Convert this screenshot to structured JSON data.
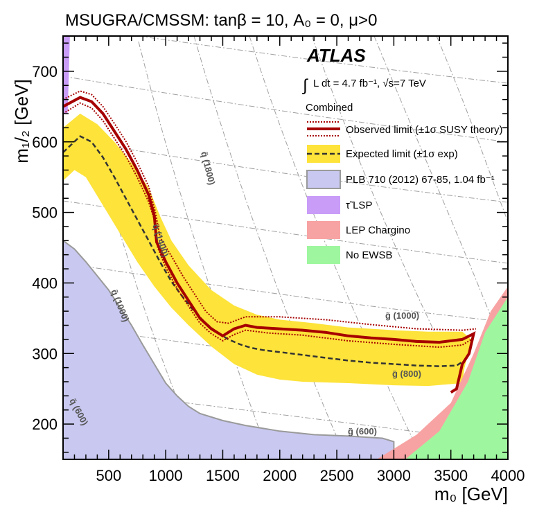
{
  "chart_data": {
    "type": "line",
    "title": "MSUGRA/CMSSM: tanβ = 10, A₀ = 0, μ>0",
    "xlabel": "m₀ [GeV]",
    "ylabel": "m₁/₂ [GeV]",
    "xlim": [
      100,
      4000
    ],
    "ylim": [
      150,
      750
    ],
    "x_ticks": [
      500,
      1000,
      1500,
      2000,
      2500,
      3000,
      3500,
      4000
    ],
    "y_ticks": [
      200,
      300,
      400,
      500,
      600,
      700
    ],
    "experiment": "ATLAS",
    "lumi_text": "L dt = 4.7 fb⁻¹, √s=7 TeV",
    "legend_header": "Combined",
    "legend": [
      {
        "key": "observed",
        "label": "Observed limit (±1σ SUSY theory)"
      },
      {
        "key": "expected",
        "label": "Expected limit (±1σ exp)"
      },
      {
        "key": "plb",
        "label": "PLB 710 (2012) 67-85, 1.04 fb⁻¹"
      },
      {
        "key": "stau",
        "label": "τ̃ LSP"
      },
      {
        "key": "lep",
        "label": "LEP Chargino"
      },
      {
        "key": "noewsb",
        "label": "No EWSB"
      }
    ],
    "contour_labels": [
      {
        "text": "q̃ (1800)"
      },
      {
        "text": "q̃ (1400)"
      },
      {
        "text": "q̃ (1000)"
      },
      {
        "text": "q̃ (600)"
      },
      {
        "text": "g̃ (1000)"
      },
      {
        "text": "g̃ (800)"
      },
      {
        "text": "g̃ (600)"
      }
    ],
    "series": [
      {
        "name": "Observed limit",
        "points": [
          [
            100,
            650
          ],
          [
            250,
            663
          ],
          [
            350,
            657
          ],
          [
            450,
            640
          ],
          [
            550,
            615
          ],
          [
            650,
            590
          ],
          [
            750,
            560
          ],
          [
            850,
            525
          ],
          [
            900,
            495
          ],
          [
            920,
            458
          ],
          [
            1000,
            430
          ],
          [
            1100,
            400
          ],
          [
            1200,
            375
          ],
          [
            1300,
            350
          ],
          [
            1400,
            335
          ],
          [
            1500,
            325
          ],
          [
            1600,
            335
          ],
          [
            1700,
            340
          ],
          [
            1800,
            337
          ],
          [
            2000,
            335
          ],
          [
            2200,
            333
          ],
          [
            2400,
            330
          ],
          [
            2600,
            325
          ],
          [
            2800,
            322
          ],
          [
            3000,
            320
          ],
          [
            3200,
            317
          ],
          [
            3400,
            316
          ],
          [
            3600,
            320
          ],
          [
            3700,
            328
          ],
          [
            3660,
            300
          ],
          [
            3600,
            285
          ],
          [
            3550,
            250
          ],
          [
            3500,
            245
          ]
        ]
      },
      {
        "name": "Observed -1σ theory",
        "points": [
          [
            100,
            640
          ],
          [
            250,
            655
          ],
          [
            350,
            648
          ],
          [
            450,
            630
          ],
          [
            550,
            605
          ],
          [
            650,
            580
          ],
          [
            750,
            550
          ],
          [
            850,
            515
          ],
          [
            900,
            490
          ],
          [
            930,
            450
          ],
          [
            1000,
            422
          ],
          [
            1100,
            392
          ],
          [
            1200,
            367
          ],
          [
            1300,
            343
          ],
          [
            1400,
            328
          ],
          [
            1500,
            318
          ],
          [
            1600,
            327
          ],
          [
            1700,
            333
          ],
          [
            1900,
            329
          ],
          [
            2200,
            326
          ],
          [
            2600,
            318
          ],
          [
            3000,
            313
          ],
          [
            3400,
            309
          ],
          [
            3600,
            312
          ],
          [
            3680,
            320
          ]
        ]
      },
      {
        "name": "Observed +1σ theory",
        "points": [
          [
            100,
            660
          ],
          [
            250,
            672
          ],
          [
            350,
            667
          ],
          [
            450,
            650
          ],
          [
            550,
            626
          ],
          [
            650,
            601
          ],
          [
            750,
            571
          ],
          [
            850,
            537
          ],
          [
            910,
            500
          ],
          [
            950,
            465
          ],
          [
            1050,
            438
          ],
          [
            1150,
            410
          ],
          [
            1250,
            385
          ],
          [
            1350,
            360
          ],
          [
            1450,
            345
          ],
          [
            1550,
            343
          ],
          [
            1700,
            352
          ],
          [
            2000,
            352
          ],
          [
            2400,
            348
          ],
          [
            2800,
            341
          ],
          [
            3200,
            335
          ],
          [
            3600,
            333
          ],
          [
            3720,
            335
          ]
        ]
      },
      {
        "name": "Expected limit",
        "points": [
          [
            100,
            585
          ],
          [
            250,
            608
          ],
          [
            350,
            600
          ],
          [
            450,
            578
          ],
          [
            550,
            550
          ],
          [
            650,
            520
          ],
          [
            750,
            490
          ],
          [
            850,
            460
          ],
          [
            950,
            430
          ],
          [
            1050,
            402
          ],
          [
            1150,
            380
          ],
          [
            1250,
            360
          ],
          [
            1350,
            343
          ],
          [
            1450,
            330
          ],
          [
            1550,
            320
          ],
          [
            1650,
            313
          ],
          [
            1750,
            308
          ],
          [
            1850,
            305
          ],
          [
            2000,
            302
          ],
          [
            2200,
            298
          ],
          [
            2400,
            294
          ],
          [
            2600,
            290
          ],
          [
            2800,
            287
          ],
          [
            3000,
            285
          ],
          [
            3200,
            283
          ],
          [
            3400,
            282
          ],
          [
            3550,
            283
          ],
          [
            3620,
            290
          ]
        ]
      },
      {
        "name": "Expected -1σ exp",
        "points": [
          [
            100,
            620
          ],
          [
            250,
            640
          ],
          [
            400,
            625
          ],
          [
            550,
            600
          ],
          [
            700,
            570
          ],
          [
            850,
            535
          ],
          [
            950,
            495
          ],
          [
            1050,
            460
          ],
          [
            1200,
            425
          ],
          [
            1400,
            390
          ],
          [
            1600,
            368
          ],
          [
            1800,
            355
          ],
          [
            2000,
            348
          ],
          [
            2300,
            343
          ],
          [
            2600,
            337
          ],
          [
            3000,
            333
          ],
          [
            3300,
            331
          ],
          [
            3600,
            331
          ],
          [
            3680,
            320
          ]
        ]
      },
      {
        "name": "Expected +1σ exp",
        "points": [
          [
            100,
            545
          ],
          [
            200,
            560
          ],
          [
            300,
            550
          ],
          [
            450,
            510
          ],
          [
            600,
            470
          ],
          [
            750,
            430
          ],
          [
            900,
            395
          ],
          [
            1050,
            365
          ],
          [
            1200,
            340
          ],
          [
            1400,
            310
          ],
          [
            1600,
            285
          ],
          [
            1800,
            270
          ],
          [
            2000,
            263
          ],
          [
            2200,
            260
          ],
          [
            2600,
            258
          ],
          [
            3000,
            255
          ],
          [
            3300,
            254
          ],
          [
            3600,
            258
          ],
          [
            3620,
            280
          ]
        ]
      },
      {
        "name": "PLB 710 (2012) boundary",
        "points": [
          [
            100,
            460
          ],
          [
            200,
            448
          ],
          [
            300,
            430
          ],
          [
            400,
            410
          ],
          [
            500,
            390
          ],
          [
            600,
            365
          ],
          [
            700,
            340
          ],
          [
            800,
            312
          ],
          [
            900,
            285
          ],
          [
            1000,
            258
          ],
          [
            1100,
            240
          ],
          [
            1200,
            225
          ],
          [
            1300,
            215
          ],
          [
            1500,
            205
          ],
          [
            1700,
            198
          ],
          [
            2000,
            190
          ],
          [
            2300,
            185
          ],
          [
            2600,
            183
          ],
          [
            2900,
            180
          ],
          [
            3000,
            175
          ]
        ]
      },
      {
        "name": "LEP Chargino boundary",
        "points": [
          [
            2850,
            150
          ],
          [
            3200,
            185
          ],
          [
            3500,
            230
          ],
          [
            3700,
            300
          ],
          [
            3850,
            360
          ],
          [
            4000,
            395
          ]
        ]
      },
      {
        "name": "No EWSB boundary",
        "points": [
          [
            3100,
            150
          ],
          [
            3400,
            190
          ],
          [
            3650,
            260
          ],
          [
            3800,
            330
          ],
          [
            4000,
            380
          ]
        ]
      }
    ]
  }
}
